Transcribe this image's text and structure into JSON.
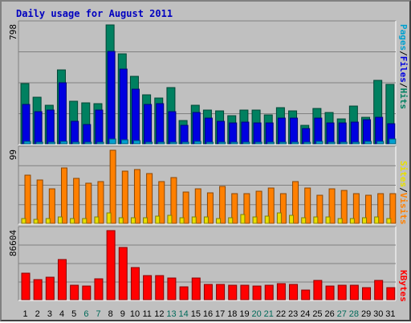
{
  "title": "Daily usage for August 2011",
  "colors": {
    "pages": "#00a0d0",
    "files": "#0000e0",
    "hits": "#008060",
    "sites": "#e8e000",
    "visits": "#ff8000",
    "kbytes": "#ff0000",
    "weekday": "#000000",
    "weekend": "#006a5a"
  },
  "right_labels": {
    "top": [
      {
        "text": "Pages",
        "color": "#00a0d0"
      },
      {
        "text": "/",
        "color": "#000000"
      },
      {
        "text": "Files",
        "color": "#0000e0"
      },
      {
        "text": "/",
        "color": "#000000"
      },
      {
        "text": "Hits",
        "color": "#008060"
      }
    ],
    "middle": [
      {
        "text": "Sites",
        "color": "#e8e000"
      },
      {
        "text": "/",
        "color": "#000000"
      },
      {
        "text": "Visits",
        "color": "#ff8000"
      }
    ],
    "bottom": [
      {
        "text": "KBytes",
        "color": "#ff0000"
      }
    ]
  },
  "chart_data": [
    {
      "type": "bar",
      "name": "hits-files-pages",
      "ylim": [
        0,
        798
      ],
      "ytick_label": "798",
      "categories": [
        "1",
        "2",
        "3",
        "4",
        "5",
        "6",
        "7",
        "8",
        "9",
        "10",
        "11",
        "12",
        "13",
        "14",
        "15",
        "16",
        "17",
        "18",
        "19",
        "20",
        "21",
        "22",
        "23",
        "24",
        "25",
        "26",
        "27",
        "28",
        "29",
        "30",
        "31"
      ],
      "weekend": [
        "6",
        "7",
        "13",
        "14",
        "20",
        "21",
        "27",
        "28"
      ],
      "series": [
        {
          "name": "Hits",
          "values": [
            405,
            315,
            260,
            495,
            285,
            275,
            270,
            798,
            605,
            455,
            330,
            305,
            375,
            155,
            260,
            225,
            220,
            190,
            225,
            225,
            195,
            240,
            220,
            125,
            235,
            210,
            165,
            255,
            180,
            425,
            400
          ]
        },
        {
          "name": "Files",
          "values": [
            265,
            215,
            225,
            410,
            150,
            130,
            225,
            620,
            500,
            365,
            265,
            270,
            215,
            125,
            210,
            175,
            150,
            140,
            145,
            140,
            140,
            175,
            175,
            105,
            175,
            140,
            140,
            145,
            160,
            180,
            135
          ]
        },
        {
          "name": "Pages",
          "values": [
            15,
            10,
            10,
            15,
            10,
            10,
            10,
            30,
            25,
            20,
            10,
            10,
            10,
            10,
            15,
            10,
            10,
            10,
            10,
            10,
            10,
            10,
            10,
            10,
            15,
            10,
            10,
            10,
            15,
            15,
            30
          ]
        }
      ]
    },
    {
      "type": "bar",
      "name": "visits-sites",
      "ylim": [
        0,
        99
      ],
      "ytick_label": "99",
      "categories": [
        "1",
        "2",
        "3",
        "4",
        "5",
        "6",
        "7",
        "8",
        "9",
        "10",
        "11",
        "12",
        "13",
        "14",
        "15",
        "16",
        "17",
        "18",
        "19",
        "20",
        "21",
        "22",
        "23",
        "24",
        "25",
        "26",
        "27",
        "28",
        "29",
        "30",
        "31"
      ],
      "weekend": [
        "6",
        "7",
        "13",
        "14",
        "20",
        "21",
        "27",
        "28"
      ],
      "series": [
        {
          "name": "Visits",
          "values": [
            65,
            59,
            47,
            75,
            61,
            54,
            57,
            99,
            71,
            73,
            67,
            57,
            62,
            42,
            47,
            41,
            50,
            40,
            40,
            43,
            48,
            40,
            57,
            48,
            38,
            47,
            45,
            40,
            38,
            40,
            40
          ]
        },
        {
          "name": "Sites",
          "values": [
            7,
            5,
            6,
            9,
            6,
            6,
            9,
            14,
            8,
            8,
            8,
            10,
            11,
            8,
            9,
            9,
            7,
            8,
            12,
            9,
            10,
            14,
            11,
            8,
            9,
            9,
            6,
            6,
            8,
            9,
            7
          ]
        }
      ]
    },
    {
      "type": "bar",
      "name": "kbytes",
      "ylim": [
        0,
        86604
      ],
      "ytick_label": "86604",
      "categories": [
        "1",
        "2",
        "3",
        "4",
        "5",
        "6",
        "7",
        "8",
        "9",
        "10",
        "11",
        "12",
        "13",
        "14",
        "15",
        "16",
        "17",
        "18",
        "19",
        "20",
        "21",
        "22",
        "23",
        "24",
        "25",
        "26",
        "27",
        "28",
        "29",
        "30",
        "31"
      ],
      "weekend": [
        "6",
        "7",
        "13",
        "14",
        "20",
        "21",
        "27",
        "28"
      ],
      "series": [
        {
          "name": "KBytes",
          "values": [
            33000,
            25000,
            28000,
            50000,
            18000,
            17000,
            26000,
            86604,
            65000,
            40000,
            30000,
            30000,
            27000,
            16000,
            27000,
            19000,
            19000,
            18000,
            18000,
            17000,
            18000,
            20000,
            19000,
            12000,
            24000,
            17000,
            18000,
            18000,
            15000,
            24000,
            15000
          ]
        }
      ]
    }
  ]
}
